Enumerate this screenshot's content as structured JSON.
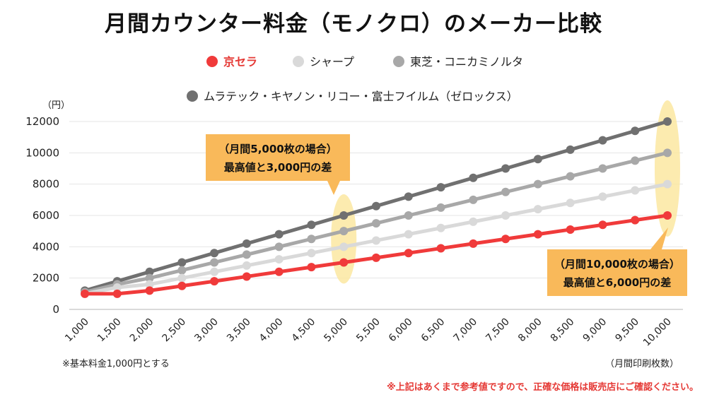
{
  "chart_data": {
    "type": "line",
    "title": "月間カウンター料金（モノクロ）のメーカー比較",
    "yunit": "（円）",
    "xlabel": "（月間印刷枚数）",
    "ylim": [
      0,
      12000
    ],
    "yticks": [
      0,
      2000,
      4000,
      6000,
      8000,
      10000,
      12000
    ],
    "categories": [
      "1,000",
      "1,500",
      "2,000",
      "2,500",
      "3,000",
      "3,500",
      "4,000",
      "4,500",
      "5,000",
      "5,500",
      "6,000",
      "6,500",
      "7,000",
      "7,500",
      "8,000",
      "8,500",
      "9,000",
      "9,500",
      "10,000"
    ],
    "series": [
      {
        "name": "京セラ",
        "color": "#f03a3a",
        "text_color": "#e53935",
        "values": [
          1000,
          1000,
          1200,
          1500,
          1800,
          2100,
          2400,
          2700,
          3000,
          3300,
          3600,
          3900,
          4200,
          4500,
          4800,
          5100,
          5400,
          5700,
          6000
        ]
      },
      {
        "name": "シャープ",
        "color": "#d9d9d9",
        "text_color": "#222222",
        "values": [
          1000,
          1400,
          1600,
          2000,
          2400,
          2800,
          3200,
          3600,
          4000,
          4400,
          4800,
          5200,
          5600,
          6000,
          6400,
          6800,
          7200,
          7600,
          8000
        ]
      },
      {
        "name": "東芝・コニカミノルタ",
        "color": "#a8a8a8",
        "text_color": "#222222",
        "values": [
          1100,
          1600,
          2000,
          2500,
          3000,
          3500,
          4000,
          4500,
          5000,
          5500,
          6000,
          6500,
          7000,
          7500,
          8000,
          8500,
          9000,
          9500,
          10000
        ]
      },
      {
        "name": "ムラテック・キヤノン・リコー・富士フイルム（ゼロックス）",
        "color": "#707070",
        "text_color": "#222222",
        "values": [
          1200,
          1800,
          2400,
          3000,
          3600,
          4200,
          4800,
          5400,
          6000,
          6600,
          7200,
          7800,
          8400,
          9000,
          9600,
          10200,
          10800,
          11400,
          12000
        ]
      }
    ],
    "annotations": [
      {
        "lines": [
          "（月間5,000枚の場合）",
          "最高値と3,000円の差"
        ],
        "category": "5,000"
      },
      {
        "lines": [
          "（月間10,000枚の場合）",
          "最高値と6,000円の差"
        ],
        "category": "10,000"
      }
    ],
    "highlight_color": "#fbe7a1",
    "annotation_box_color": "#f9b95a"
  },
  "footnote": "※基本料金1,000円とする",
  "disclaimer": "※上記はあくまで参考値ですので、正確な価格は販売店にご確認ください。"
}
